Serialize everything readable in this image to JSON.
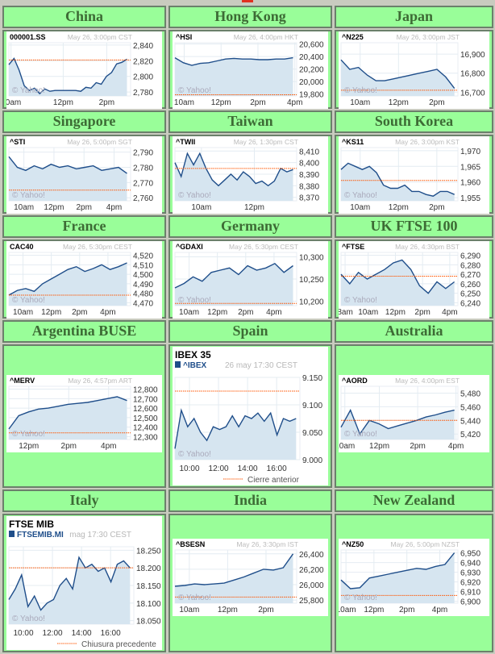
{
  "colors": {
    "cell": "#99fe99",
    "header_text": "#3d6b35",
    "line": "#1f4e8a",
    "fill": "#d6e5f0",
    "prev_close": "#ff5500",
    "grid": "#e4ecf2"
  },
  "watermark": "© Yahoo!",
  "chart_data": [
    {
      "type": "area",
      "region": "China",
      "ticker": "000001.SS",
      "date": "May 26, 3:00pm CST",
      "xlim": [
        9.5,
        15.1
      ],
      "ylim": [
        2775,
        2843
      ],
      "yticks": [
        "2,840",
        "2,820",
        "2,800",
        "2,780"
      ],
      "ytick_values": [
        2840,
        2820,
        2800,
        2780
      ],
      "xticks": [
        {
          "label": "10am",
          "x": 9.6
        },
        {
          "label": "12pm",
          "x": 12
        },
        {
          "label": "2pm",
          "x": 14
        }
      ],
      "prev_close": 2821,
      "values": [
        2815,
        2823,
        2808,
        2788,
        2782,
        2785,
        2778,
        2784,
        2781,
        2782,
        2782,
        2782,
        2782,
        2782,
        2781,
        2786,
        2785,
        2792,
        2790,
        2800,
        2805,
        2816,
        2818,
        2822
      ]
    },
    {
      "type": "area",
      "region": "Hong Kong",
      "ticker": "^HSI",
      "date": "May 26, 4:00pm HKT",
      "xlim": [
        9.5,
        16.1
      ],
      "ylim": [
        19770,
        20620
      ],
      "yticks": [
        "20,600",
        "20,400",
        "20,200",
        "20,000",
        "19,800"
      ],
      "ytick_values": [
        20600,
        20400,
        20200,
        20000,
        19800
      ],
      "xticks": [
        {
          "label": "10am",
          "x": 10
        },
        {
          "label": "12pm",
          "x": 12
        },
        {
          "label": "2pm",
          "x": 14
        },
        {
          "label": "4pm",
          "x": 16
        }
      ],
      "prev_close": 19790,
      "values": [
        20380,
        20300,
        20260,
        20290,
        20300,
        20330,
        20360,
        20370,
        20360,
        20360,
        20350,
        20350,
        20360,
        20360,
        20380
      ]
    },
    {
      "type": "area",
      "region": "Japan",
      "ticker": "^N225",
      "date": "May 26, 3:00pm JST",
      "xlim": [
        9,
        15.1
      ],
      "ylim": [
        16680,
        16960
      ],
      "yticks": [
        "16,900",
        "16,800",
        "16,700"
      ],
      "ytick_values": [
        16900,
        16800,
        16700
      ],
      "xticks": [
        {
          "label": "10am",
          "x": 10
        },
        {
          "label": "12pm",
          "x": 12
        },
        {
          "label": "2pm",
          "x": 14
        }
      ],
      "prev_close": 16710,
      "values": [
        16870,
        16820,
        16830,
        16790,
        16760,
        16760,
        16770,
        16780,
        16790,
        16800,
        16810,
        16820,
        16780,
        16720
      ]
    },
    {
      "type": "area",
      "region": "Singapore",
      "ticker": "^STI",
      "date": "May 26, 5:00pm SGT",
      "xlim": [
        9,
        17.1
      ],
      "ylim": [
        2758,
        2793
      ],
      "yticks": [
        "2,790",
        "2,780",
        "2,770",
        "2,760"
      ],
      "ytick_values": [
        2790,
        2780,
        2770,
        2760
      ],
      "xticks": [
        {
          "label": "10am",
          "x": 10
        },
        {
          "label": "12pm",
          "x": 12
        },
        {
          "label": "2pm",
          "x": 14
        },
        {
          "label": "4pm",
          "x": 16
        }
      ],
      "prev_close": 2765,
      "values": [
        2787,
        2780,
        2778,
        2781,
        2779,
        2782,
        2780,
        2781,
        2779,
        2780,
        2781,
        2778,
        2779,
        2780,
        2776
      ]
    },
    {
      "type": "area",
      "region": "Taiwan",
      "ticker": "^TWII",
      "date": "May 26, 1:30pm CST",
      "xlim": [
        9,
        13.6
      ],
      "ylim": [
        8367,
        8413
      ],
      "yticks": [
        "8,410",
        "8,400",
        "8,390",
        "8,380",
        "8,370"
      ],
      "ytick_values": [
        8410,
        8400,
        8390,
        8380,
        8370
      ],
      "xticks": [
        {
          "label": "10am",
          "x": 10
        },
        {
          "label": "12pm",
          "x": 12
        }
      ],
      "prev_close": 8395,
      "values": [
        8400,
        8388,
        8408,
        8398,
        8408,
        8395,
        8385,
        8380,
        8385,
        8390,
        8385,
        8392,
        8388,
        8382,
        8384,
        8380,
        8384,
        8395,
        8392,
        8394
      ]
    },
    {
      "type": "area",
      "region": "South Korea",
      "ticker": "^KS11",
      "date": "May 26, 3:00pm KST",
      "xlim": [
        9,
        15.1
      ],
      "ylim": [
        1954,
        1971
      ],
      "yticks": [
        "1,970",
        "1,965",
        "1,960",
        "1,955"
      ],
      "ytick_values": [
        1970,
        1965,
        1960,
        1955
      ],
      "xticks": [
        {
          "label": "10am",
          "x": 10
        },
        {
          "label": "12pm",
          "x": 12
        },
        {
          "label": "2pm",
          "x": 14
        }
      ],
      "prev_close": 1960.5,
      "values": [
        1964,
        1966,
        1965,
        1964,
        1965,
        1963,
        1959,
        1958,
        1958,
        1959,
        1957,
        1957,
        1956,
        1955.5,
        1957,
        1957,
        1956
      ]
    },
    {
      "type": "area",
      "region": "France",
      "ticker": "CAC40",
      "date": "May 26, 5:30pm CEST",
      "xlim": [
        9,
        17.6
      ],
      "ylim": [
        4467,
        4523
      ],
      "yticks": [
        "4,520",
        "4,510",
        "4,500",
        "4,490",
        "4,480",
        "4,470"
      ],
      "ytick_values": [
        4520,
        4510,
        4500,
        4490,
        4480,
        4470
      ],
      "xticks": [
        {
          "label": "10am",
          "x": 10
        },
        {
          "label": "12pm",
          "x": 12
        },
        {
          "label": "2pm",
          "x": 14
        },
        {
          "label": "4pm",
          "x": 16
        }
      ],
      "prev_close": 4478,
      "values": [
        4478,
        4483,
        4485,
        4482,
        4490,
        4495,
        4500,
        4505,
        4508,
        4503,
        4506,
        4510,
        4505,
        4508,
        4512
      ]
    },
    {
      "type": "area",
      "region": "Germany",
      "ticker": "^GDAXI",
      "date": "May 26, 5:30pm CEST",
      "xlim": [
        9,
        17.6
      ],
      "ylim": [
        10190,
        10310
      ],
      "yticks": [
        "10,300",
        "10,250",
        "10,200"
      ],
      "ytick_values": [
        10300,
        10250,
        10200
      ],
      "xticks": [
        {
          "label": "10am",
          "x": 10
        },
        {
          "label": "12pm",
          "x": 12
        },
        {
          "label": "2pm",
          "x": 14
        },
        {
          "label": "4pm",
          "x": 16
        }
      ],
      "prev_close": 10195,
      "values": [
        10230,
        10240,
        10255,
        10245,
        10265,
        10270,
        10275,
        10260,
        10280,
        10270,
        10275,
        10285,
        10265,
        10280
      ]
    },
    {
      "type": "area",
      "region": "UK FTSE 100",
      "ticker": "^FTSE",
      "date": "May 26, 4:30pm BST",
      "xlim": [
        8,
        16.6
      ],
      "ylim": [
        6237,
        6293
      ],
      "yticks": [
        "6,290",
        "6,280",
        "6,270",
        "6,260",
        "6,250",
        "6,240"
      ],
      "ytick_values": [
        6290,
        6280,
        6270,
        6260,
        6250,
        6240
      ],
      "xticks": [
        {
          "label": "8am",
          "x": 8.3
        },
        {
          "label": "10am",
          "x": 10
        },
        {
          "label": "12pm",
          "x": 12
        },
        {
          "label": "2pm",
          "x": 14
        },
        {
          "label": "4pm",
          "x": 16
        }
      ],
      "prev_close": 6268,
      "values": [
        6270,
        6260,
        6272,
        6265,
        6270,
        6275,
        6282,
        6285,
        6275,
        6258,
        6250,
        6262,
        6255,
        6262
      ]
    },
    {
      "type": "area",
      "region": "Argentina BUSE",
      "ticker": "^MERV",
      "date": "May 26, 4:57pm ART",
      "xlim": [
        11,
        17.1
      ],
      "ylim": [
        12270,
        12830
      ],
      "yticks": [
        "12,800",
        "12,700",
        "12,600",
        "12,500",
        "12,400",
        "12,300"
      ],
      "ytick_values": [
        12800,
        12700,
        12600,
        12500,
        12400,
        12300
      ],
      "xticks": [
        {
          "label": "12pm",
          "x": 12
        },
        {
          "label": "2pm",
          "x": 14
        },
        {
          "label": "4pm",
          "x": 16
        }
      ],
      "prev_close": 12340,
      "values": [
        12380,
        12520,
        12560,
        12590,
        12600,
        12620,
        12640,
        12650,
        12660,
        12680,
        12700,
        12720,
        12680
      ]
    },
    {
      "type": "area",
      "style": "large",
      "region": "Spain",
      "title": "IBEX 35",
      "ticker": "^IBEX",
      "date": "26 may 17:30 CEST",
      "legend": "Cierre anterior",
      "xlim": [
        9,
        17.6
      ],
      "ylim": [
        9000,
        9150
      ],
      "yticks": [
        "9.150",
        "9.100",
        "9.050",
        "9.000"
      ],
      "ytick_values": [
        9150,
        9100,
        9050,
        9000
      ],
      "xticks": [
        {
          "label": "10:00",
          "x": 10
        },
        {
          "label": "12:00",
          "x": 12
        },
        {
          "label": "14:00",
          "x": 14
        },
        {
          "label": "16:00",
          "x": 16
        }
      ],
      "prev_close": 9125,
      "values": [
        9020,
        9090,
        9060,
        9075,
        9050,
        9035,
        9060,
        9055,
        9060,
        9080,
        9060,
        9080,
        9075,
        9085,
        9070,
        9085,
        9045,
        9075,
        9070,
        9075
      ]
    },
    {
      "type": "area",
      "region": "Australia",
      "ticker": "^AORD",
      "date": "May 26, 4:00pm EST",
      "xlim": [
        10,
        16.1
      ],
      "ylim": [
        5412,
        5490
      ],
      "yticks": [
        "5,480",
        "5,460",
        "5,440",
        "5,420"
      ],
      "ytick_values": [
        5480,
        5460,
        5440,
        5420
      ],
      "xticks": [
        {
          "label": "10am",
          "x": 10.2
        },
        {
          "label": "12pm",
          "x": 12
        },
        {
          "label": "2pm",
          "x": 14
        },
        {
          "label": "4pm",
          "x": 16
        }
      ],
      "prev_close": 5440,
      "values": [
        5430,
        5455,
        5420,
        5440,
        5435,
        5428,
        5432,
        5436,
        5440,
        5445,
        5448,
        5452,
        5455
      ]
    },
    {
      "type": "area",
      "style": "large",
      "region": "Italy",
      "title": "FTSE MIB",
      "ticker": "FTSEMIB.MI",
      "date": "mag 17:30 CEST",
      "legend": "Chiusura precedente",
      "xlim": [
        9,
        17.6
      ],
      "ylim": [
        18040,
        18260
      ],
      "yticks": [
        "18.250",
        "18.200",
        "18.150",
        "18.100",
        "18.050"
      ],
      "ytick_values": [
        18250,
        18200,
        18150,
        18100,
        18050
      ],
      "xticks": [
        {
          "label": "10:00",
          "x": 10
        },
        {
          "label": "12:00",
          "x": 12
        },
        {
          "label": "14:00",
          "x": 14
        },
        {
          "label": "16:00",
          "x": 16
        }
      ],
      "prev_close": 18200,
      "values": [
        18110,
        18140,
        18180,
        18090,
        18120,
        18080,
        18100,
        18110,
        18150,
        18170,
        18140,
        18230,
        18200,
        18210,
        18190,
        18200,
        18160,
        18210,
        18220,
        18200
      ]
    },
    {
      "type": "area",
      "region": "India",
      "ticker": "^BSESN",
      "date": "May 26, 3:30pm IST",
      "xlim": [
        9.25,
        15.6
      ],
      "ylim": [
        25760,
        26450
      ],
      "yticks": [
        "26,400",
        "26,200",
        "26,000",
        "25,800"
      ],
      "ytick_values": [
        26400,
        26200,
        26000,
        25800
      ],
      "xticks": [
        {
          "label": "10am",
          "x": 10
        },
        {
          "label": "12pm",
          "x": 12
        },
        {
          "label": "2pm",
          "x": 14
        }
      ],
      "prev_close": 25840,
      "values": [
        25980,
        25990,
        26010,
        26000,
        26010,
        26020,
        26060,
        26100,
        26150,
        26200,
        26190,
        26220,
        26400
      ]
    },
    {
      "type": "area",
      "region": "New Zealand",
      "ticker": "^NZ50",
      "date": "May 26, 5:00pm NZST",
      "xlim": [
        10,
        17.1
      ],
      "ylim": [
        6898,
        6953
      ],
      "yticks": [
        "6,950",
        "6,940",
        "6,930",
        "6,920",
        "6,910",
        "6,900"
      ],
      "ytick_values": [
        6950,
        6940,
        6930,
        6920,
        6910,
        6900
      ],
      "xticks": [
        {
          "label": "10am",
          "x": 10.3
        },
        {
          "label": "12pm",
          "x": 12
        },
        {
          "label": "2pm",
          "x": 14
        },
        {
          "label": "4pm",
          "x": 16
        }
      ],
      "prev_close": 6906,
      "values": [
        6922,
        6913,
        6914,
        6924,
        6926,
        6928,
        6930,
        6932,
        6934,
        6933,
        6936,
        6938,
        6950
      ]
    }
  ]
}
